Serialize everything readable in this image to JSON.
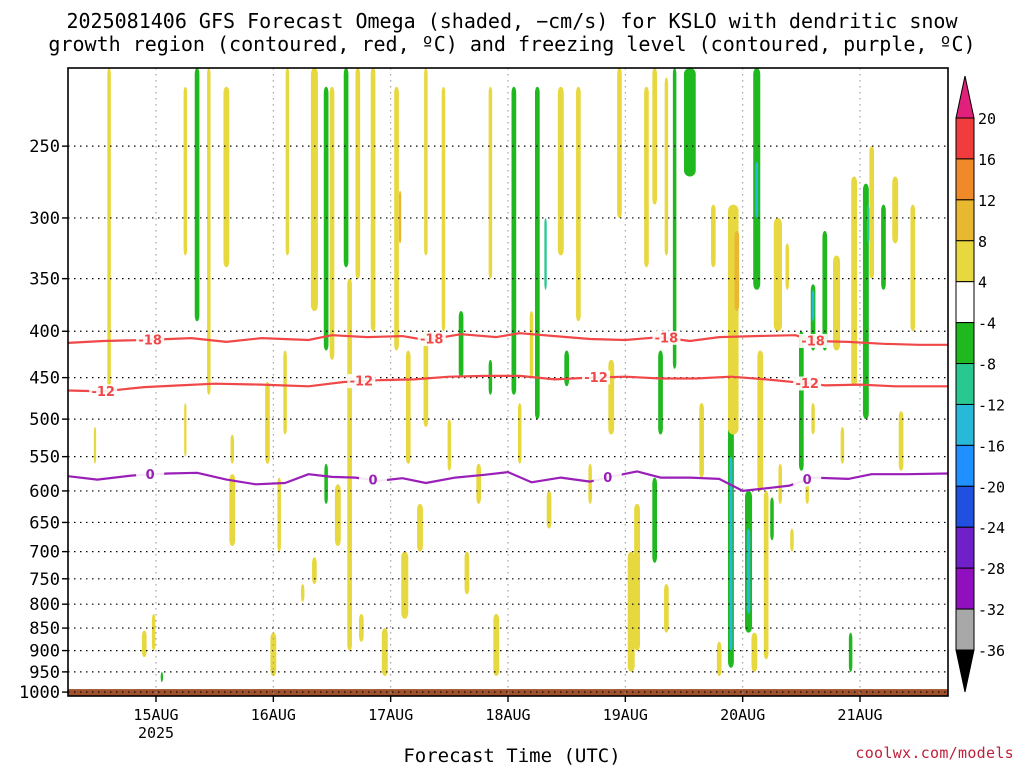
{
  "title": {
    "line1": "2025081406 GFS Forecast Omega (shaded, −cm/s) for KSLO with dendritic snow",
    "line2": "growth region (contoured, red, ºC) and freezing level (contoured, purple, ºC)"
  },
  "credit": "coolwx.com/models",
  "chart_data": {
    "type": "heatmap",
    "xlabel": "Forecast Time (UTC)",
    "ylabel": "",
    "y_scale": "log-pressure",
    "y_inverted": true,
    "ylim": [
      1010,
      205
    ],
    "xlim": [
      14.25,
      21.75
    ],
    "x_unit": "days (August 2025)",
    "grid": "dotted",
    "y_ticks": [
      250,
      300,
      350,
      400,
      450,
      500,
      550,
      600,
      650,
      700,
      750,
      800,
      850,
      900,
      950,
      1000
    ],
    "x_ticks": [
      {
        "value": 15,
        "label": "15AUG",
        "sublabel": "2025"
      },
      {
        "value": 16,
        "label": "16AUG",
        "sublabel": ""
      },
      {
        "value": 17,
        "label": "17AUG",
        "sublabel": ""
      },
      {
        "value": 18,
        "label": "18AUG",
        "sublabel": ""
      },
      {
        "value": 19,
        "label": "19AUG",
        "sublabel": ""
      },
      {
        "value": 20,
        "label": "20AUG",
        "sublabel": ""
      },
      {
        "value": 21,
        "label": "21AUG",
        "sublabel": ""
      }
    ],
    "colorbar": {
      "levels": [
        20,
        16,
        12,
        8,
        4,
        -4,
        -8,
        -12,
        -16,
        -20,
        -24,
        -28,
        -32,
        -36
      ],
      "colors": [
        "#e8a8c8",
        "#f03c3c",
        "#f08a28",
        "#e8b830",
        "#e8d840",
        "#ffffff",
        "#1fb81f",
        "#28c890",
        "#28b8d8",
        "#1e90ff",
        "#2050e0",
        "#7020c8",
        "#9010c0",
        "#a8a8a8",
        "#000000"
      ],
      "top_arrow_color": "#e0207a",
      "bottom_arrow_color": "#000000"
    },
    "ground": {
      "from_pressure": 1000,
      "color": "#a0522d"
    },
    "contours": [
      {
        "value": -18,
        "label": "-18",
        "color": "#f04848",
        "points": [
          [
            14.25,
            412
          ],
          [
            14.55,
            410
          ],
          [
            14.9,
            409
          ],
          [
            15.3,
            407
          ],
          [
            15.6,
            411
          ],
          [
            15.9,
            407
          ],
          [
            16.3,
            409
          ],
          [
            16.5,
            404
          ],
          [
            16.8,
            406
          ],
          [
            17.1,
            405
          ],
          [
            17.3,
            409
          ],
          [
            17.6,
            403
          ],
          [
            17.9,
            406
          ],
          [
            18.1,
            402
          ],
          [
            18.4,
            405
          ],
          [
            18.7,
            408
          ],
          [
            19.0,
            409
          ],
          [
            19.3,
            406
          ],
          [
            19.55,
            410
          ],
          [
            19.8,
            406
          ],
          [
            20.1,
            405
          ],
          [
            20.45,
            404
          ],
          [
            20.6,
            410
          ],
          [
            20.9,
            411
          ],
          [
            21.2,
            413
          ],
          [
            21.5,
            414
          ],
          [
            21.75,
            414
          ]
        ],
        "labels_at": [
          14.95,
          17.35,
          19.35,
          20.6
        ]
      },
      {
        "value": -12,
        "label": "-12",
        "color": "#f04848",
        "points": [
          [
            14.25,
            465
          ],
          [
            14.55,
            466
          ],
          [
            14.9,
            461
          ],
          [
            15.2,
            459
          ],
          [
            15.5,
            457
          ],
          [
            15.9,
            458
          ],
          [
            16.3,
            460
          ],
          [
            16.6,
            455
          ],
          [
            16.9,
            453
          ],
          [
            17.2,
            452
          ],
          [
            17.5,
            449
          ],
          [
            17.8,
            448
          ],
          [
            18.1,
            448
          ],
          [
            18.4,
            452
          ],
          [
            18.7,
            450
          ],
          [
            19.0,
            449
          ],
          [
            19.3,
            451
          ],
          [
            19.6,
            451
          ],
          [
            19.9,
            449
          ],
          [
            20.2,
            452
          ],
          [
            20.5,
            456
          ],
          [
            20.7,
            459
          ],
          [
            21.0,
            458
          ],
          [
            21.3,
            460
          ],
          [
            21.5,
            460
          ],
          [
            21.75,
            460
          ]
        ],
        "labels_at": [
          14.55,
          16.75,
          18.75,
          20.55
        ]
      },
      {
        "value": 0,
        "label": "0",
        "color": "#9a1fb8",
        "points": [
          [
            14.25,
            578
          ],
          [
            14.5,
            583
          ],
          [
            14.8,
            577
          ],
          [
            15.1,
            574
          ],
          [
            15.35,
            573
          ],
          [
            15.6,
            583
          ],
          [
            15.85,
            590
          ],
          [
            16.1,
            588
          ],
          [
            16.3,
            575
          ],
          [
            16.5,
            579
          ],
          [
            16.7,
            580
          ],
          [
            16.9,
            585
          ],
          [
            17.1,
            581
          ],
          [
            17.3,
            588
          ],
          [
            17.55,
            580
          ],
          [
            17.8,
            576
          ],
          [
            18.0,
            572
          ],
          [
            18.2,
            587
          ],
          [
            18.45,
            580
          ],
          [
            18.7,
            586
          ],
          [
            18.9,
            578
          ],
          [
            19.1,
            571
          ],
          [
            19.3,
            580
          ],
          [
            19.55,
            580
          ],
          [
            19.8,
            582
          ],
          [
            20.0,
            600
          ],
          [
            20.2,
            596
          ],
          [
            20.4,
            592
          ],
          [
            20.6,
            580
          ],
          [
            20.9,
            582
          ],
          [
            21.1,
            575
          ],
          [
            21.4,
            575
          ],
          [
            21.75,
            574
          ]
        ],
        "labels_at": [
          14.95,
          16.85,
          18.85,
          20.55
        ]
      }
    ],
    "shaded_regions": [
      {
        "x": 14.48,
        "p_top": 510,
        "p_bot": 560,
        "w": 0.02,
        "v": 6
      },
      {
        "x": 14.6,
        "p_top": 205,
        "p_bot": 470,
        "w": 0.03,
        "v": 5
      },
      {
        "x": 14.9,
        "p_top": 855,
        "p_bot": 915,
        "w": 0.04,
        "v": 5
      },
      {
        "x": 14.98,
        "p_top": 820,
        "p_bot": 900,
        "w": 0.03,
        "v": 5
      },
      {
        "x": 15.05,
        "p_top": 950,
        "p_bot": 975,
        "w": 0.02,
        "v": -6
      },
      {
        "x": 15.25,
        "p_top": 215,
        "p_bot": 330,
        "w": 0.03,
        "v": 5
      },
      {
        "x": 15.25,
        "p_top": 480,
        "p_bot": 550,
        "w": 0.02,
        "v": 5
      },
      {
        "x": 15.35,
        "p_top": 205,
        "p_bot": 390,
        "w": 0.04,
        "v": -6
      },
      {
        "x": 15.45,
        "p_top": 205,
        "p_bot": 470,
        "w": 0.03,
        "v": 5
      },
      {
        "x": 15.6,
        "p_top": 215,
        "p_bot": 340,
        "w": 0.05,
        "v": 5
      },
      {
        "x": 15.65,
        "p_top": 520,
        "p_bot": 560,
        "w": 0.03,
        "v": 5
      },
      {
        "x": 15.65,
        "p_top": 575,
        "p_bot": 690,
        "w": 0.05,
        "v": 5
      },
      {
        "x": 15.95,
        "p_top": 455,
        "p_bot": 560,
        "w": 0.04,
        "v": 5
      },
      {
        "x": 16.0,
        "p_top": 860,
        "p_bot": 960,
        "w": 0.05,
        "v": 5
      },
      {
        "x": 16.05,
        "p_top": 580,
        "p_bot": 700,
        "w": 0.03,
        "v": 5
      },
      {
        "x": 16.1,
        "p_top": 420,
        "p_bot": 520,
        "w": 0.03,
        "v": 5
      },
      {
        "x": 16.12,
        "p_top": 205,
        "p_bot": 330,
        "w": 0.03,
        "v": 5
      },
      {
        "x": 16.25,
        "p_top": 760,
        "p_bot": 795,
        "w": 0.03,
        "v": 5
      },
      {
        "x": 16.35,
        "p_top": 205,
        "p_bot": 380,
        "w": 0.06,
        "v": 5
      },
      {
        "x": 16.35,
        "p_top": 710,
        "p_bot": 760,
        "w": 0.04,
        "v": 5
      },
      {
        "x": 16.45,
        "p_top": 215,
        "p_bot": 420,
        "w": 0.04,
        "v": -6
      },
      {
        "x": 16.45,
        "p_top": 560,
        "p_bot": 620,
        "w": 0.03,
        "v": -6
      },
      {
        "x": 16.5,
        "p_top": 215,
        "p_bot": 430,
        "w": 0.04,
        "v": 5
      },
      {
        "x": 16.55,
        "p_top": 590,
        "p_bot": 690,
        "w": 0.05,
        "v": 5
      },
      {
        "x": 16.62,
        "p_top": 205,
        "p_bot": 340,
        "w": 0.04,
        "v": -7
      },
      {
        "x": 16.65,
        "p_top": 350,
        "p_bot": 900,
        "w": 0.04,
        "v": 5
      },
      {
        "x": 16.72,
        "p_top": 205,
        "p_bot": 350,
        "w": 0.04,
        "v": 5
      },
      {
        "x": 16.75,
        "p_top": 820,
        "p_bot": 880,
        "w": 0.04,
        "v": 5
      },
      {
        "x": 16.85,
        "p_top": 205,
        "p_bot": 400,
        "w": 0.04,
        "v": 5
      },
      {
        "x": 16.95,
        "p_top": 850,
        "p_bot": 960,
        "w": 0.05,
        "v": 5
      },
      {
        "x": 17.05,
        "p_top": 215,
        "p_bot": 420,
        "w": 0.04,
        "v": 5
      },
      {
        "x": 17.08,
        "p_top": 280,
        "p_bot": 320,
        "w": 0.02,
        "v": 9
      },
      {
        "x": 17.12,
        "p_top": 700,
        "p_bot": 830,
        "w": 0.06,
        "v": 5
      },
      {
        "x": 17.15,
        "p_top": 420,
        "p_bot": 560,
        "w": 0.04,
        "v": 5
      },
      {
        "x": 17.25,
        "p_top": 620,
        "p_bot": 700,
        "w": 0.05,
        "v": 5
      },
      {
        "x": 17.3,
        "p_top": 400,
        "p_bot": 510,
        "w": 0.04,
        "v": 5
      },
      {
        "x": 17.3,
        "p_top": 205,
        "p_bot": 330,
        "w": 0.03,
        "v": 5
      },
      {
        "x": 17.45,
        "p_top": 215,
        "p_bot": 400,
        "w": 0.03,
        "v": 5
      },
      {
        "x": 17.5,
        "p_top": 500,
        "p_bot": 570,
        "w": 0.03,
        "v": 5
      },
      {
        "x": 17.6,
        "p_top": 380,
        "p_bot": 450,
        "w": 0.04,
        "v": -6
      },
      {
        "x": 17.65,
        "p_top": 700,
        "p_bot": 780,
        "w": 0.04,
        "v": 5
      },
      {
        "x": 17.75,
        "p_top": 560,
        "p_bot": 620,
        "w": 0.04,
        "v": 5
      },
      {
        "x": 17.85,
        "p_top": 215,
        "p_bot": 350,
        "w": 0.03,
        "v": 5
      },
      {
        "x": 17.85,
        "p_top": 430,
        "p_bot": 470,
        "w": 0.03,
        "v": -6
      },
      {
        "x": 17.9,
        "p_top": 820,
        "p_bot": 960,
        "w": 0.05,
        "v": 5
      },
      {
        "x": 18.05,
        "p_top": 215,
        "p_bot": 470,
        "w": 0.04,
        "v": -6
      },
      {
        "x": 18.1,
        "p_top": 480,
        "p_bot": 560,
        "w": 0.03,
        "v": 5
      },
      {
        "x": 18.2,
        "p_top": 380,
        "p_bot": 450,
        "w": 0.03,
        "v": 5
      },
      {
        "x": 18.25,
        "p_top": 215,
        "p_bot": 500,
        "w": 0.04,
        "v": -6
      },
      {
        "x": 18.32,
        "p_top": 300,
        "p_bot": 360,
        "w": 0.02,
        "v": -9
      },
      {
        "x": 18.35,
        "p_top": 600,
        "p_bot": 660,
        "w": 0.04,
        "v": 5
      },
      {
        "x": 18.45,
        "p_top": 215,
        "p_bot": 330,
        "w": 0.05,
        "v": 5
      },
      {
        "x": 18.5,
        "p_top": 420,
        "p_bot": 460,
        "w": 0.04,
        "v": -6
      },
      {
        "x": 18.6,
        "p_top": 215,
        "p_bot": 390,
        "w": 0.04,
        "v": 5
      },
      {
        "x": 18.7,
        "p_top": 560,
        "p_bot": 620,
        "w": 0.03,
        "v": 5
      },
      {
        "x": 18.88,
        "p_top": 430,
        "p_bot": 520,
        "w": 0.05,
        "v": 5
      },
      {
        "x": 18.95,
        "p_top": 205,
        "p_bot": 300,
        "w": 0.04,
        "v": 5
      },
      {
        "x": 19.05,
        "p_top": 700,
        "p_bot": 950,
        "w": 0.06,
        "v": 5
      },
      {
        "x": 19.1,
        "p_top": 620,
        "p_bot": 900,
        "w": 0.05,
        "v": 5
      },
      {
        "x": 19.18,
        "p_top": 215,
        "p_bot": 340,
        "w": 0.04,
        "v": 5
      },
      {
        "x": 19.25,
        "p_top": 205,
        "p_bot": 290,
        "w": 0.04,
        "v": 5
      },
      {
        "x": 19.25,
        "p_top": 580,
        "p_bot": 720,
        "w": 0.04,
        "v": -8
      },
      {
        "x": 19.3,
        "p_top": 420,
        "p_bot": 520,
        "w": 0.04,
        "v": -6
      },
      {
        "x": 19.35,
        "p_top": 210,
        "p_bot": 330,
        "w": 0.03,
        "v": 5
      },
      {
        "x": 19.35,
        "p_top": 760,
        "p_bot": 860,
        "w": 0.04,
        "v": 5
      },
      {
        "x": 19.42,
        "p_top": 205,
        "p_bot": 440,
        "w": 0.03,
        "v": -6
      },
      {
        "x": 19.55,
        "p_top": 205,
        "p_bot": 270,
        "w": 0.1,
        "v": -6
      },
      {
        "x": 19.65,
        "p_top": 480,
        "p_bot": 580,
        "w": 0.04,
        "v": 5
      },
      {
        "x": 19.75,
        "p_top": 290,
        "p_bot": 340,
        "w": 0.04,
        "v": 5
      },
      {
        "x": 19.8,
        "p_top": 880,
        "p_bot": 960,
        "w": 0.04,
        "v": 5
      },
      {
        "x": 19.9,
        "p_top": 480,
        "p_bot": 940,
        "w": 0.05,
        "v": -7
      },
      {
        "x": 19.9,
        "p_top": 550,
        "p_bot": 900,
        "w": 0.025,
        "v": -13
      },
      {
        "x": 19.92,
        "p_top": 290,
        "p_bot": 520,
        "w": 0.09,
        "v": 5
      },
      {
        "x": 19.95,
        "p_top": 310,
        "p_bot": 380,
        "w": 0.04,
        "v": 9
      },
      {
        "x": 20.05,
        "p_top": 600,
        "p_bot": 860,
        "w": 0.06,
        "v": -7
      },
      {
        "x": 20.05,
        "p_top": 660,
        "p_bot": 820,
        "w": 0.03,
        "v": -13
      },
      {
        "x": 20.1,
        "p_top": 860,
        "p_bot": 950,
        "w": 0.05,
        "v": 5
      },
      {
        "x": 20.12,
        "p_top": 205,
        "p_bot": 360,
        "w": 0.06,
        "v": -6
      },
      {
        "x": 20.12,
        "p_top": 260,
        "p_bot": 300,
        "w": 0.025,
        "v": -16
      },
      {
        "x": 20.15,
        "p_top": 420,
        "p_bot": 600,
        "w": 0.05,
        "v": 5
      },
      {
        "x": 20.2,
        "p_top": 600,
        "p_bot": 920,
        "w": 0.04,
        "v": 5
      },
      {
        "x": 20.25,
        "p_top": 610,
        "p_bot": 680,
        "w": 0.03,
        "v": -6
      },
      {
        "x": 20.3,
        "p_top": 300,
        "p_bot": 400,
        "w": 0.07,
        "v": 5
      },
      {
        "x": 20.32,
        "p_top": 560,
        "p_bot": 620,
        "w": 0.03,
        "v": 5
      },
      {
        "x": 20.38,
        "p_top": 320,
        "p_bot": 360,
        "w": 0.03,
        "v": 5
      },
      {
        "x": 20.42,
        "p_top": 660,
        "p_bot": 700,
        "w": 0.03,
        "v": 5
      },
      {
        "x": 20.5,
        "p_top": 400,
        "p_bot": 570,
        "w": 0.04,
        "v": -6
      },
      {
        "x": 20.55,
        "p_top": 580,
        "p_bot": 620,
        "w": 0.03,
        "v": 5
      },
      {
        "x": 20.6,
        "p_top": 355,
        "p_bot": 420,
        "w": 0.04,
        "v": -6
      },
      {
        "x": 20.6,
        "p_top": 360,
        "p_bot": 390,
        "w": 0.02,
        "v": -13
      },
      {
        "x": 20.6,
        "p_top": 480,
        "p_bot": 520,
        "w": 0.03,
        "v": 5
      },
      {
        "x": 20.7,
        "p_top": 310,
        "p_bot": 420,
        "w": 0.04,
        "v": -6
      },
      {
        "x": 20.8,
        "p_top": 330,
        "p_bot": 420,
        "w": 0.06,
        "v": 5
      },
      {
        "x": 20.85,
        "p_top": 510,
        "p_bot": 560,
        "w": 0.03,
        "v": 5
      },
      {
        "x": 20.92,
        "p_top": 860,
        "p_bot": 950,
        "w": 0.03,
        "v": -6
      },
      {
        "x": 20.95,
        "p_top": 270,
        "p_bot": 460,
        "w": 0.05,
        "v": 5
      },
      {
        "x": 21.05,
        "p_top": 275,
        "p_bot": 500,
        "w": 0.05,
        "v": -7
      },
      {
        "x": 21.07,
        "p_top": 290,
        "p_bot": 320,
        "w": 0.02,
        "v": -11
      },
      {
        "x": 21.1,
        "p_top": 250,
        "p_bot": 350,
        "w": 0.04,
        "v": 5
      },
      {
        "x": 21.2,
        "p_top": 290,
        "p_bot": 360,
        "w": 0.04,
        "v": -6
      },
      {
        "x": 21.3,
        "p_top": 270,
        "p_bot": 320,
        "w": 0.05,
        "v": 5
      },
      {
        "x": 21.35,
        "p_top": 490,
        "p_bot": 570,
        "w": 0.04,
        "v": 5
      },
      {
        "x": 21.45,
        "p_top": 290,
        "p_bot": 400,
        "w": 0.04,
        "v": 5
      }
    ]
  }
}
